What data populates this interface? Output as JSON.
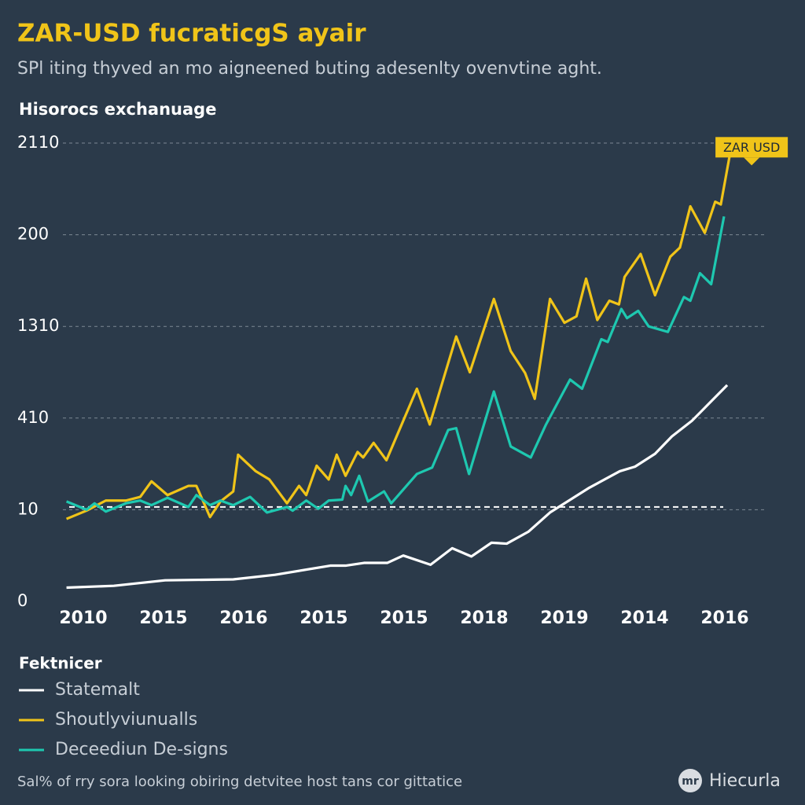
{
  "chart_data": {
    "type": "line",
    "title": "ZAR-USD fucraticgS ayair",
    "subtitle": "SPl iting thyved an mo aigneened buting adesenlty ovenvtine aght.",
    "axis_heading": "Hisorocs exchanuage",
    "legend_title": "Fektnicer",
    "footer": "Sal% of rry sora looking obiring detvitee host tans cor gittatice",
    "brand": {
      "icon": "mr",
      "name": "Hiecurla"
    },
    "callout": "ZAR USD",
    "reference_line": 1.03,
    "grid": true,
    "xlim": [
      -0.3,
      8.5
    ],
    "xticks": [
      {
        "value": 0,
        "label": "2010"
      },
      {
        "value": 1,
        "label": "2015"
      },
      {
        "value": 2,
        "label": "2016"
      },
      {
        "value": 3,
        "label": "2015"
      },
      {
        "value": 4,
        "label": "2015"
      },
      {
        "value": 5,
        "label": "2018"
      },
      {
        "value": 6,
        "label": "2019"
      },
      {
        "value": 7,
        "label": "2014"
      },
      {
        "value": 8,
        "label": "2016"
      }
    ],
    "ylim": [
      0,
      5
    ],
    "yticks": [
      0,
      {
        "value": 1,
        "label": "10"
      },
      {
        "value": 2,
        "label": "410"
      },
      {
        "value": 3,
        "label": "1310"
      },
      {
        "value": 4,
        "label": "200"
      },
      {
        "value": 5,
        "label": "2110"
      }
    ],
    "series": [
      {
        "name": "Statemalt",
        "color": "#ffffff",
        "x": [
          -0.21,
          0.38,
          1.02,
          1.87,
          2.39,
          3.08,
          3.27,
          3.5,
          3.79,
          3.99,
          4.33,
          4.6,
          4.84,
          5.09,
          5.28,
          5.55,
          5.82,
          6.31,
          6.69,
          6.88,
          7.13,
          7.34,
          7.59,
          8.03
        ],
        "values": [
          0.15,
          0.17,
          0.23,
          0.24,
          0.29,
          0.39,
          0.39,
          0.42,
          0.42,
          0.5,
          0.4,
          0.58,
          0.49,
          0.64,
          0.63,
          0.76,
          0.97,
          1.24,
          1.42,
          1.47,
          1.61,
          1.8,
          1.97,
          2.36
        ]
      },
      {
        "name": "Shoutlyviunualls",
        "color": "#f0c419",
        "x": [
          -0.21,
          0.04,
          0.28,
          0.53,
          0.71,
          0.85,
          1.05,
          1.31,
          1.41,
          1.58,
          1.71,
          1.87,
          1.93,
          2.15,
          2.32,
          2.54,
          2.69,
          2.78,
          2.91,
          3.06,
          3.16,
          3.27,
          3.42,
          3.49,
          3.62,
          3.78,
          4.16,
          4.32,
          4.65,
          4.82,
          5.12,
          5.33,
          5.51,
          5.63,
          5.82,
          6.0,
          6.15,
          6.27,
          6.41,
          6.56,
          6.68,
          6.75,
          6.95,
          7.13,
          7.32,
          7.44,
          7.57,
          7.75,
          7.88,
          7.95,
          8.06
        ],
        "values": [
          0.9,
          0.99,
          1.1,
          1.1,
          1.14,
          1.31,
          1.16,
          1.26,
          1.26,
          0.92,
          1.09,
          1.2,
          1.6,
          1.42,
          1.33,
          1.07,
          1.26,
          1.16,
          1.48,
          1.33,
          1.6,
          1.37,
          1.63,
          1.57,
          1.73,
          1.54,
          2.32,
          1.93,
          2.89,
          2.5,
          3.3,
          2.73,
          2.49,
          2.21,
          3.3,
          3.04,
          3.11,
          3.52,
          3.07,
          3.28,
          3.24,
          3.54,
          3.79,
          3.34,
          3.76,
          3.86,
          4.31,
          4.02,
          4.36,
          4.33,
          4.86
        ]
      },
      {
        "name": "Deceediun De-signs",
        "color": "#1ec8b0",
        "x": [
          -0.21,
          0.04,
          0.14,
          0.28,
          0.53,
          0.71,
          0.85,
          1.05,
          1.31,
          1.41,
          1.58,
          1.71,
          1.87,
          2.08,
          2.29,
          2.54,
          2.61,
          2.78,
          2.93,
          3.06,
          3.23,
          3.27,
          3.34,
          3.44,
          3.55,
          3.75,
          3.84,
          4.06,
          4.16,
          4.35,
          4.55,
          4.65,
          4.81,
          5.12,
          5.33,
          5.58,
          5.77,
          6.07,
          6.22,
          6.46,
          6.54,
          6.71,
          6.78,
          6.92,
          7.05,
          7.29,
          7.49,
          7.57,
          7.69,
          7.83,
          7.99
        ],
        "values": [
          1.09,
          1.0,
          1.07,
          0.98,
          1.07,
          1.1,
          1.05,
          1.13,
          1.03,
          1.16,
          1.05,
          1.1,
          1.05,
          1.14,
          0.97,
          1.03,
          0.99,
          1.1,
          1.01,
          1.1,
          1.11,
          1.26,
          1.16,
          1.37,
          1.09,
          1.2,
          1.07,
          1.29,
          1.39,
          1.46,
          1.87,
          1.89,
          1.39,
          2.29,
          1.69,
          1.57,
          1.93,
          2.42,
          2.32,
          2.86,
          2.83,
          3.19,
          3.09,
          3.17,
          3.0,
          2.94,
          3.32,
          3.28,
          3.58,
          3.46,
          4.2
        ]
      }
    ]
  }
}
